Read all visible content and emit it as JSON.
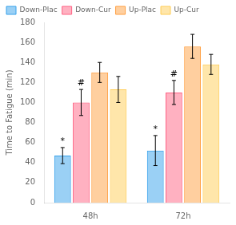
{
  "chart_data": {
    "type": "bar",
    "categories": [
      "48h",
      "72h"
    ],
    "series": [
      {
        "name": "Down-Plac",
        "values": [
          47,
          52
        ],
        "errors": [
          8,
          15
        ]
      },
      {
        "name": "Down-Cur",
        "values": [
          100,
          110
        ],
        "errors": [
          13,
          12
        ]
      },
      {
        "name": "Up-Plac",
        "values": [
          130,
          156
        ],
        "errors": [
          10,
          12
        ]
      },
      {
        "name": "Up-Cur",
        "values": [
          113,
          138
        ],
        "errors": [
          13,
          10
        ]
      }
    ],
    "ylabel": "Time to Fatigue (min)",
    "ylim": [
      0,
      180
    ],
    "yticks": [
      0,
      20,
      40,
      60,
      80,
      100,
      120,
      140,
      160,
      180
    ],
    "grid": false,
    "legend": "upper left",
    "annotations": [
      {
        "text": "*",
        "category": "48h",
        "series": "Down-Plac"
      },
      {
        "text": "#",
        "category": "48h",
        "series": "Down-Cur"
      },
      {
        "text": "*",
        "category": "72h",
        "series": "Down-Plac"
      },
      {
        "text": "#",
        "category": "72h",
        "series": "Down-Cur"
      }
    ]
  }
}
